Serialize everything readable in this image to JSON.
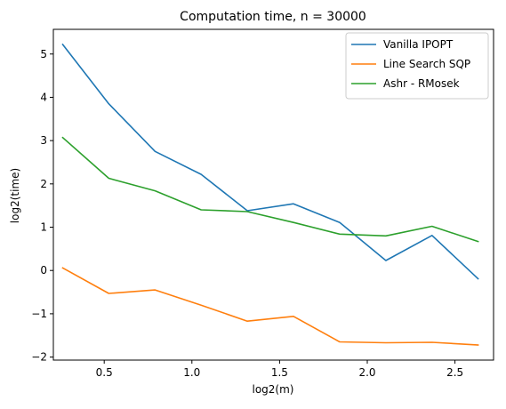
{
  "chart_data": {
    "type": "line",
    "title": "Computation time, n = 30000",
    "xlabel": "log2(m)",
    "ylabel": "log2(time)",
    "xlim": [
      0.21,
      2.72
    ],
    "ylim": [
      -2.07,
      5.57
    ],
    "grid": false,
    "legend_position": "top-right",
    "x_ticks": [
      0.5,
      1.0,
      1.5,
      2.0,
      2.5
    ],
    "x_tick_labels": [
      "0.5",
      "1.0",
      "1.5",
      "2.0",
      "2.5"
    ],
    "y_ticks": [
      -2,
      -1,
      0,
      1,
      2,
      3,
      4,
      5
    ],
    "y_tick_labels": [
      "−2",
      "−1",
      "0",
      "1",
      "2",
      "3",
      "4",
      "5"
    ],
    "x": [
      0.263,
      0.526,
      0.79,
      1.053,
      1.316,
      1.579,
      1.843,
      2.106,
      2.369,
      2.632
    ],
    "series": [
      {
        "name": "Vanilla IPOPT",
        "color": "#1f77b4",
        "values": [
          5.22,
          3.85,
          2.75,
          2.22,
          1.38,
          1.54,
          1.11,
          0.23,
          0.81,
          -0.19
        ]
      },
      {
        "name": "Line Search SQP",
        "color": "#ff7f0e",
        "values": [
          0.06,
          -0.53,
          -0.45,
          -0.8,
          -1.17,
          -1.06,
          -1.65,
          -1.67,
          -1.66,
          -1.72
        ]
      },
      {
        "name": "Ashr - RMosek",
        "color": "#2ca02c",
        "values": [
          3.07,
          2.13,
          1.84,
          1.4,
          1.36,
          1.11,
          0.84,
          0.8,
          1.02,
          0.67
        ]
      }
    ]
  }
}
